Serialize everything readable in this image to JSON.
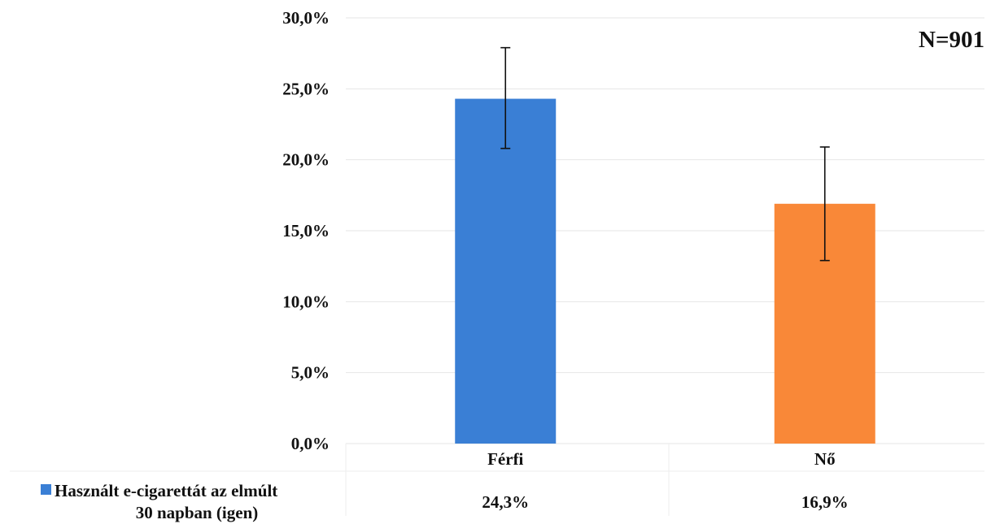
{
  "chart_data": {
    "type": "bar",
    "categories": [
      "Férfi",
      "Nő"
    ],
    "series": [
      {
        "name": "Használt e-cigarettát az elmúlt 30 napban (igen)",
        "name_lines": [
          "Használt e-cigarettát az elmúlt",
          "30 napban (igen)"
        ],
        "values": [
          24.3,
          16.9
        ],
        "value_labels": [
          "24,3%",
          "16,9%"
        ],
        "error_low": [
          20.8,
          12.9
        ],
        "error_high": [
          27.9,
          20.9
        ],
        "colors": [
          "#3a7fd5",
          "#f98838"
        ]
      }
    ],
    "annotation": "N=901",
    "yticks": [
      0,
      5,
      10,
      15,
      20,
      25,
      30
    ],
    "ytick_labels": [
      "0,0%",
      "5,0%",
      "10,0%",
      "15,0%",
      "20,0%",
      "25,0%",
      "30,0%"
    ],
    "ylim": [
      0,
      30
    ],
    "grid": true,
    "legend": "bottom-left data table",
    "legend_color": "#3a7fd5"
  }
}
